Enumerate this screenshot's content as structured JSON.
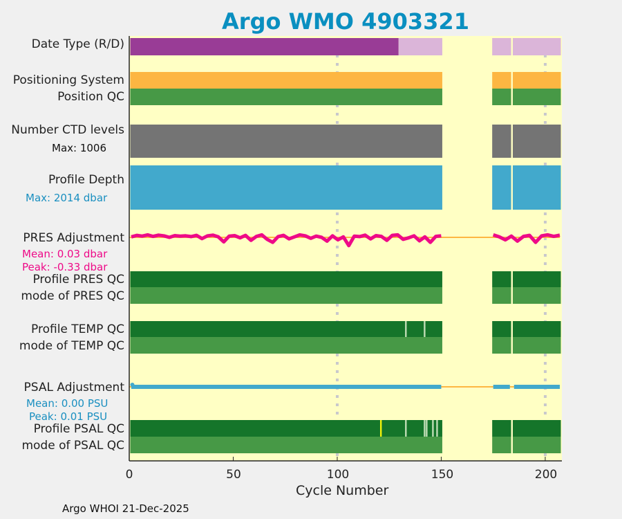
{
  "chart_data": {
    "type": "bar",
    "title": "Argo WMO 4903321",
    "xlabel": "Cycle Number",
    "xlim": [
      0,
      208
    ],
    "xticks": [
      0,
      50,
      100,
      150,
      200
    ],
    "cycles_present": {
      "ranges": [
        [
          1,
          150
        ],
        [
          175,
          207
        ]
      ],
      "missing": [
        184
      ]
    },
    "rows": [
      {
        "label": "Date Type (R/D)",
        "segments": [
          {
            "from": 1,
            "to": 129,
            "value": "D",
            "color": "#993c96"
          },
          {
            "from": 130,
            "to": 207,
            "value": "R",
            "color": "#dbb5d9"
          }
        ]
      },
      {
        "label": "Positioning System",
        "color": "#fdb642"
      },
      {
        "label": "Position QC",
        "color": "#479946"
      },
      {
        "label": "Number CTD levels",
        "sub": "Max: 1006",
        "color": "#747474"
      },
      {
        "label": "Profile Depth",
        "sub": "Max: 2014 dbar",
        "color": "#42a9cc"
      },
      {
        "label": "PRES Adjustment",
        "sub": [
          "Mean: 0.03 dbar",
          "Peak: -0.33 dbar"
        ],
        "color": "#ee0a88",
        "units": "dbar",
        "samples": [
          0.02,
          0.08,
          0.05,
          0.1,
          0.04,
          0.09,
          0.06,
          0.0,
          0.07,
          0.05,
          0.06,
          0.03,
          0.08,
          -0.05,
          0.06,
          0.09,
          0.02,
          -0.18,
          0.05,
          0.07,
          -0.02,
          0.08,
          -0.12,
          0.04,
          0.1,
          -0.08,
          -0.2,
          0.03,
          0.08,
          -0.06,
          0.02,
          0.1,
          0.06,
          -0.04,
          0.05,
          0.0,
          -0.15,
          0.06,
          -0.1,
          0.02,
          -0.33,
          0.05,
          0.03,
          0.09,
          -0.06,
          0.07,
          0.04,
          -0.12,
          0.08,
          0.1,
          -0.08,
          -0.02,
          0.06,
          -0.14,
          0.02,
          -0.2,
          0.04,
          0.06
        ],
        "samples2": [
          0.1,
          0.02,
          -0.1,
          0.05,
          -0.15,
          0.04,
          0.08,
          -0.2,
          0.06,
          0.1,
          0.04,
          0.09
        ]
      },
      {
        "label": "Profile PRES QC",
        "color": "#15752a"
      },
      {
        "label": "mode of PRES QC",
        "color": "#479946"
      },
      {
        "label": "Profile TEMP QC",
        "color": "#15752a",
        "flags": [
          {
            "cycle": 133,
            "color": "#bfdcb5"
          },
          {
            "cycle": 142,
            "color": "#bfdcb5"
          }
        ]
      },
      {
        "label": "mode of TEMP QC",
        "color": "#479946"
      },
      {
        "label": "PSAL Adjustment",
        "sub": [
          "Mean: 0.00 PSU",
          "Peak: 0.01 PSU"
        ],
        "color": "#42a9cc",
        "units": "PSU"
      },
      {
        "label": "Profile PSAL QC",
        "color": "#15752a",
        "flags": [
          {
            "cycle": 121,
            "color": "#f2f20a"
          },
          {
            "cycle": 133,
            "color": "#bfdcb5"
          },
          {
            "cycle": 142,
            "color": "#bfdcb5"
          },
          {
            "cycle": 143,
            "color": "#bfdcb5"
          },
          {
            "cycle": 146,
            "color": "#bfdcb5"
          },
          {
            "cycle": 148,
            "color": "#bfdcb5"
          }
        ]
      },
      {
        "label": "mode of PSAL QC",
        "color": "#479946"
      }
    ],
    "zero_line_color": "#fdb642",
    "background": "#ffffc4"
  },
  "footer": "Argo WHOI 21-Dec-2025"
}
